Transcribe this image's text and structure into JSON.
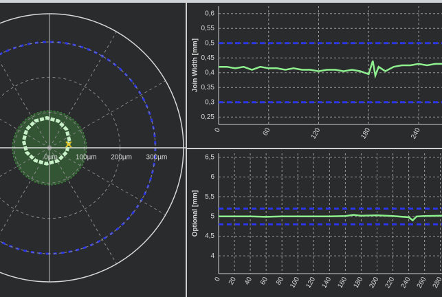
{
  "chart_data": [
    {
      "type": "polar",
      "rlim": [
        0,
        380
      ],
      "rticks": [
        {
          "value": 0,
          "label": "0µm"
        },
        {
          "value": 100,
          "label": "100µm"
        },
        {
          "value": 200,
          "label": "200µm"
        },
        {
          "value": 300,
          "label": "300µm"
        }
      ],
      "theta_step": 30,
      "circles": [
        {
          "r": 300,
          "color": "#2a35e8",
          "dashed": true
        },
        {
          "r": 105,
          "color": "#3f8a3f",
          "filled": true
        }
      ],
      "series": [
        {
          "color": "#c8f0c8",
          "theta": [
            19,
            47,
            72,
            95,
            118,
            141,
            165,
            191,
            222,
            260,
            304,
            346
          ],
          "r": [
            60,
            71,
            80,
            85,
            86,
            83,
            76,
            66,
            54,
            46,
            44,
            50
          ]
        }
      ],
      "marker": {
        "theta": 10,
        "r": 55,
        "color": "#e0c020"
      }
    },
    {
      "type": "line",
      "ylabel": "Join Width [mm]",
      "xlim": [
        0,
        268
      ],
      "ylim": [
        0.225,
        0.625
      ],
      "xticks": [
        0,
        60,
        120,
        180,
        240
      ],
      "yticks": [
        {
          "value": 0.25,
          "label": "0,25"
        },
        {
          "value": 0.3,
          "label": "0,3"
        },
        {
          "value": 0.35,
          "label": "0,35"
        },
        {
          "value": 0.4,
          "label": "0,4"
        },
        {
          "value": 0.45,
          "label": "0,45"
        },
        {
          "value": 0.5,
          "label": "0,5"
        },
        {
          "value": 0.55,
          "label": "0,55"
        },
        {
          "value": 0.6,
          "label": "0,6"
        }
      ],
      "grid": true,
      "reference_lines": [
        {
          "value": 0.5,
          "color": "#2a35e8"
        },
        {
          "value": 0.3,
          "color": "#2a35e8"
        }
      ],
      "series": [
        {
          "color": "#8ef08e",
          "x": [
            0,
            10,
            20,
            30,
            40,
            50,
            60,
            70,
            80,
            90,
            100,
            110,
            120,
            130,
            140,
            150,
            160,
            170,
            180,
            185,
            188,
            192,
            200,
            210,
            220,
            230,
            240,
            250,
            260,
            268
          ],
          "values": [
            0.42,
            0.42,
            0.415,
            0.42,
            0.41,
            0.42,
            0.415,
            0.415,
            0.41,
            0.415,
            0.41,
            0.41,
            0.405,
            0.41,
            0.41,
            0.405,
            0.41,
            0.405,
            0.395,
            0.44,
            0.39,
            0.42,
            0.405,
            0.42,
            0.425,
            0.425,
            0.43,
            0.425,
            0.43,
            0.43
          ]
        }
      ]
    },
    {
      "type": "line",
      "ylabel": "Optional [mm]",
      "xlim": [
        0,
        282
      ],
      "ylim": [
        3.55,
        6.6
      ],
      "xticks": [
        0,
        20,
        40,
        60,
        80,
        100,
        120,
        140,
        160,
        180,
        200,
        220,
        240,
        260,
        280
      ],
      "yticks": [
        4,
        {
          "value": 4.5,
          "label": "4,5"
        },
        5,
        {
          "value": 5.5,
          "label": "5,5"
        },
        6,
        {
          "value": 6.5,
          "label": "6,5"
        }
      ],
      "grid": true,
      "reference_lines": [
        {
          "value": 5.2,
          "color": "#2a35e8"
        },
        {
          "value": 4.8,
          "color": "#2a35e8"
        }
      ],
      "series": [
        {
          "color": "#8ef08e",
          "x": [
            0,
            20,
            40,
            60,
            80,
            100,
            120,
            140,
            160,
            170,
            180,
            200,
            220,
            240,
            245,
            250,
            260,
            282
          ],
          "values": [
            5,
            5,
            5,
            4.99,
            5,
            5,
            5,
            5,
            5.01,
            5.04,
            5.02,
            5.03,
            5.01,
            4.98,
            4.9,
            5,
            5.01,
            5.02
          ]
        }
      ]
    }
  ]
}
